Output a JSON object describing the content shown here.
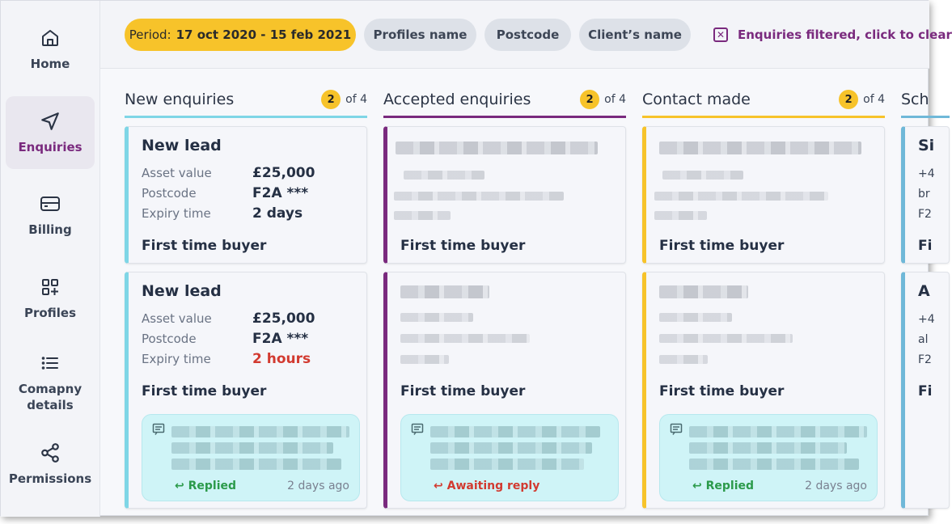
{
  "sidebar": {
    "items": [
      {
        "label": "Home",
        "icon": "home-icon"
      },
      {
        "label": "Enquiries",
        "icon": "send-icon",
        "active": true
      },
      {
        "label": "Billing",
        "icon": "card-icon"
      },
      {
        "label": "Profiles",
        "icon": "grid-plus-icon"
      },
      {
        "label": "Comapny details",
        "icon": "list-icon"
      },
      {
        "label": "Permissions",
        "icon": "share-icon"
      }
    ]
  },
  "filters": {
    "period_label": "Period:",
    "period_value": "17 oct 2020 - 15 feb 2021",
    "profiles_name": "Profiles name",
    "postcode": "Postcode",
    "clients_name": "Client’s name",
    "clear_label": "Enquiries filtered, click to clear"
  },
  "columns": [
    {
      "title": "New enquiries",
      "count": "2",
      "of_total": "of 4",
      "color": "#7fd6e6"
    },
    {
      "title": "Accepted enquiries",
      "count": "2",
      "of_total": "of 4",
      "color": "#7a2a7e"
    },
    {
      "title": "Contact made",
      "count": "2",
      "of_total": "of 4",
      "color": "#f7c32a"
    },
    {
      "title": "Sch",
      "color": "#6fb8d8"
    }
  ],
  "cards": {
    "new_1": {
      "title": "New lead",
      "asset_label": "Asset value",
      "asset_value": "£25,000",
      "postcode_label": "Postcode",
      "postcode_value": "F2A ***",
      "expiry_label": "Expiry time",
      "expiry_value": "2 days",
      "footer": "First time buyer"
    },
    "new_2": {
      "title": "New lead",
      "asset_label": "Asset value",
      "asset_value": "£25,000",
      "postcode_label": "Postcode",
      "postcode_value": "F2A ***",
      "expiry_label": "Expiry time",
      "expiry_value": "2 hours",
      "footer": "First time buyer",
      "reply_status": "Replied",
      "reply_time": "2 days ago"
    },
    "accepted_1": {
      "footer": "First time buyer"
    },
    "accepted_2": {
      "footer": "First time buyer",
      "reply_status": "Awaiting reply"
    },
    "contact_1": {
      "footer": "First time buyer"
    },
    "contact_2": {
      "footer": "First time buyer",
      "reply_status": "Replied",
      "reply_time": "2 days ago"
    },
    "sched_1": {
      "title": "Si",
      "l1": "+4",
      "l2": "br",
      "l3": "F2",
      "footer": "Fi"
    },
    "sched_2": {
      "title": "A",
      "l1": "+4",
      "l2": "al",
      "l3": "F2",
      "footer": "Fi"
    }
  },
  "colors": {
    "accent_purple": "#7a2a7e",
    "accent_yellow": "#f7c32a",
    "accent_cyan": "#7fd6e6",
    "status_green": "#2b9a4a",
    "status_red": "#d23a30"
  }
}
